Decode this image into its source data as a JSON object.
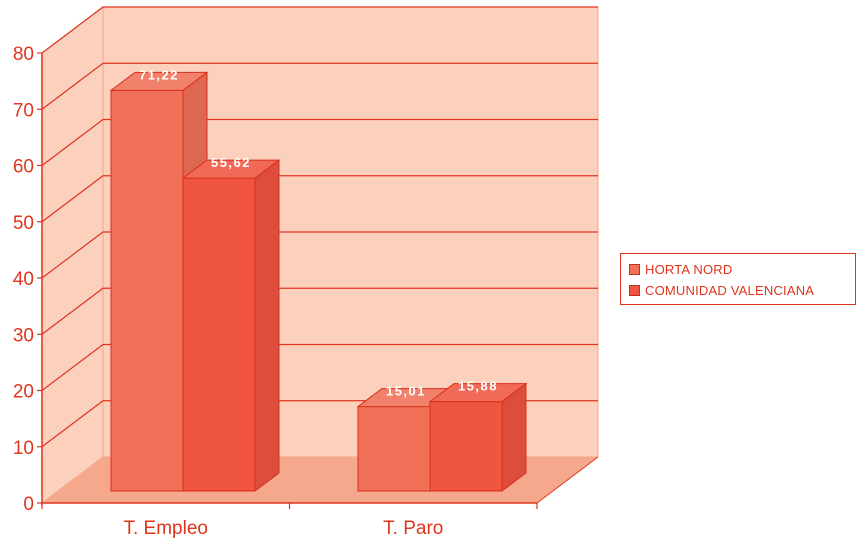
{
  "chart_data": {
    "type": "bar",
    "title": "",
    "xlabel": "",
    "ylabel": "",
    "categories": [
      "T. Empleo",
      "T. Paro"
    ],
    "series": [
      {
        "name": "HORTA NORD",
        "values": [
          71.22,
          15.01
        ],
        "labels": [
          "71,22",
          "15,01"
        ],
        "color": "#f07058"
      },
      {
        "name": "COMUNIDAD VALENCIANA",
        "values": [
          55.62,
          15.88
        ],
        "labels": [
          "55,62",
          "15,88"
        ],
        "color": "#ef5540"
      }
    ],
    "ylim": [
      0,
      80
    ],
    "yticks": [
      "0",
      "10",
      "20",
      "30",
      "40",
      "50",
      "60",
      "70",
      "80"
    ],
    "grid": true,
    "three_d": true,
    "legend_position": "right",
    "colors": {
      "wall": "#fbd0bd",
      "floor": "#f6a88c",
      "axis": "#e0341e",
      "gridline": "#e0341e"
    }
  }
}
